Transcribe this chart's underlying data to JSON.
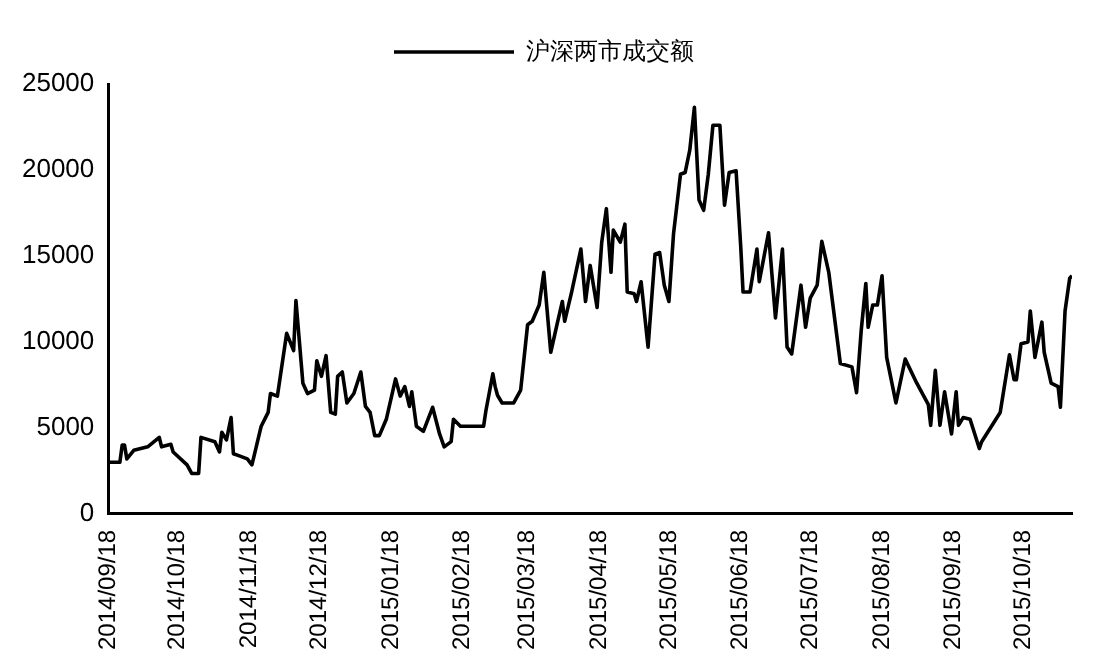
{
  "chart_data": {
    "type": "line",
    "legend": "top",
    "grid": false,
    "marker": "none",
    "line_style": "solid",
    "xlim": [
      "2014-09-18",
      "2015-11-08"
    ],
    "xticks": [
      {
        "value": "2014-09-18",
        "label": "2014/09/18"
      },
      {
        "value": "2014-10-18",
        "label": "2014/10/18"
      },
      {
        "value": "2014-11-18",
        "label": "2014/11/18"
      },
      {
        "value": "2014-12-18",
        "label": "2014/12/18"
      },
      {
        "value": "2015-01-18",
        "label": "2015/01/18"
      },
      {
        "value": "2015-02-18",
        "label": "2015/02/18"
      },
      {
        "value": "2015-03-18",
        "label": "2015/03/18"
      },
      {
        "value": "2015-04-18",
        "label": "2015/04/18"
      },
      {
        "value": "2015-05-18",
        "label": "2015/05/18"
      },
      {
        "value": "2015-06-18",
        "label": "2015/06/18"
      },
      {
        "value": "2015-07-18",
        "label": "2015/07/18"
      },
      {
        "value": "2015-08-18",
        "label": "2015/08/18"
      },
      {
        "value": "2015-09-18",
        "label": "2015/09/18"
      },
      {
        "value": "2015-10-18",
        "label": "2015/10/18"
      }
    ],
    "ylim": [
      0,
      25000
    ],
    "yticks": [
      0,
      5000,
      10000,
      15000,
      20000,
      25000
    ],
    "x": [
      "2014-09-18",
      "2014-09-23",
      "2014-09-24",
      "2014-09-25",
      "2014-09-26",
      "2014-09-29",
      "2014-10-05",
      "2014-10-10",
      "2014-10-11",
      "2014-10-15",
      "2014-10-16",
      "2014-10-22",
      "2014-10-24",
      "2014-10-27",
      "2014-10-28",
      "2014-11-03",
      "2014-11-05",
      "2014-11-06",
      "2014-11-08",
      "2014-11-10",
      "2014-11-11",
      "2014-11-13",
      "2014-11-17",
      "2014-11-19",
      "2014-11-23",
      "2014-11-26",
      "2014-11-27",
      "2014-11-30",
      "2014-12-04",
      "2014-12-07",
      "2014-12-08",
      "2014-12-11",
      "2014-12-13",
      "2014-12-16",
      "2014-12-17",
      "2014-12-19",
      "2014-12-21",
      "2014-12-23",
      "2014-12-25",
      "2014-12-26",
      "2014-12-28",
      "2014-12-30",
      "2015-01-02",
      "2015-01-05",
      "2015-01-07",
      "2015-01-09",
      "2015-01-11",
      "2015-01-13",
      "2015-01-16",
      "2015-01-20",
      "2015-01-22",
      "2015-01-24",
      "2015-01-26",
      "2015-01-27",
      "2015-01-29",
      "2015-02-01",
      "2015-02-05",
      "2015-02-08",
      "2015-02-10",
      "2015-02-13",
      "2015-02-14",
      "2015-02-17",
      "2015-02-27",
      "2015-02-28",
      "2015-03-03",
      "2015-03-04",
      "2015-03-05",
      "2015-03-07",
      "2015-03-12",
      "2015-03-15",
      "2015-03-18",
      "2015-03-20",
      "2015-03-23",
      "2015-03-25",
      "2015-03-28",
      "2015-03-31",
      "2015-04-02",
      "2015-04-03",
      "2015-04-06",
      "2015-04-10",
      "2015-04-12",
      "2015-04-14",
      "2015-04-17",
      "2015-04-19",
      "2015-04-21",
      "2015-04-23",
      "2015-04-24",
      "2015-04-27",
      "2015-04-29",
      "2015-04-30",
      "2015-05-03",
      "2015-05-04",
      "2015-05-06",
      "2015-05-09",
      "2015-05-12",
      "2015-05-14",
      "2015-05-16",
      "2015-05-18",
      "2015-05-20",
      "2015-05-23",
      "2015-05-25",
      "2015-05-27",
      "2015-05-29",
      "2015-05-31",
      "2015-06-02",
      "2015-06-04",
      "2015-06-06",
      "2015-06-09",
      "2015-06-11",
      "2015-06-13",
      "2015-06-16",
      "2015-06-18",
      "2015-06-19",
      "2015-06-22",
      "2015-06-25",
      "2015-06-26",
      "2015-06-30",
      "2015-07-03",
      "2015-07-06",
      "2015-07-08",
      "2015-07-10",
      "2015-07-14",
      "2015-07-16",
      "2015-07-18",
      "2015-07-21",
      "2015-07-23",
      "2015-07-26",
      "2015-07-31",
      "2015-08-05",
      "2015-08-07",
      "2015-08-09",
      "2015-08-11",
      "2015-08-12",
      "2015-08-14",
      "2015-08-16",
      "2015-08-18",
      "2015-08-20",
      "2015-08-24",
      "2015-08-28",
      "2015-09-02",
      "2015-09-07",
      "2015-09-08",
      "2015-09-10",
      "2015-09-12",
      "2015-09-14",
      "2015-09-17",
      "2015-09-19",
      "2015-09-20",
      "2015-09-22",
      "2015-09-25",
      "2015-09-29",
      "2015-09-30",
      "2015-10-08",
      "2015-10-12",
      "2015-10-14",
      "2015-10-15",
      "2015-10-17",
      "2015-10-20",
      "2015-10-21",
      "2015-10-23",
      "2015-10-26",
      "2015-10-27",
      "2015-10-30",
      "2015-11-02",
      "2015-11-03",
      "2015-11-05",
      "2015-11-07",
      "2015-11-08"
    ],
    "series": [
      {
        "name": "沪深两市成交额",
        "color": "#000000",
        "values": [
          3000,
          3000,
          4000,
          4000,
          3200,
          3700,
          3900,
          4450,
          3900,
          4050,
          3600,
          2850,
          2350,
          2350,
          4450,
          4200,
          3600,
          4750,
          4300,
          5600,
          3500,
          3400,
          3200,
          2850,
          5100,
          5900,
          7000,
          6850,
          10500,
          9500,
          12400,
          7600,
          7000,
          7200,
          8900,
          8000,
          9200,
          5900,
          5800,
          8000,
          8250,
          6450,
          7000,
          8250,
          6250,
          5900,
          4550,
          4550,
          5500,
          7850,
          6850,
          7400,
          6250,
          7100,
          5100,
          4800,
          6200,
          4650,
          3900,
          4200,
          5500,
          5100,
          5100,
          6000,
          8150,
          7400,
          6900,
          6450,
          6450,
          7200,
          11000,
          11200,
          12150,
          14050,
          9400,
          11200,
          12350,
          11200,
          12900,
          15400,
          12350,
          14450,
          12000,
          15800,
          17750,
          14050,
          16500,
          15800,
          16850,
          12900,
          12800,
          12350,
          13500,
          9700,
          15100,
          15200,
          13300,
          12350,
          16300,
          19750,
          19850,
          21150,
          23650,
          18250,
          17650,
          19750,
          22600,
          22600,
          17950,
          19850,
          19950,
          15550,
          12900,
          12900,
          15400,
          13500,
          16350,
          11400,
          15400,
          9700,
          9300,
          13300,
          10850,
          12550,
          13300,
          15850,
          14050,
          8750,
          8550,
          7050,
          10650,
          13400,
          10850,
          12150,
          12150,
          13850,
          9100,
          6450,
          9000,
          7600,
          6350,
          5150,
          8350,
          5150,
          7100,
          4650,
          7100,
          5150,
          5600,
          5500,
          3800,
          4200,
          5900,
          9250,
          7800,
          7800,
          9900,
          10000,
          11800,
          9100,
          11150,
          9400,
          7600,
          7400,
          6200,
          11800,
          13700,
          13850
        ]
      }
    ]
  }
}
